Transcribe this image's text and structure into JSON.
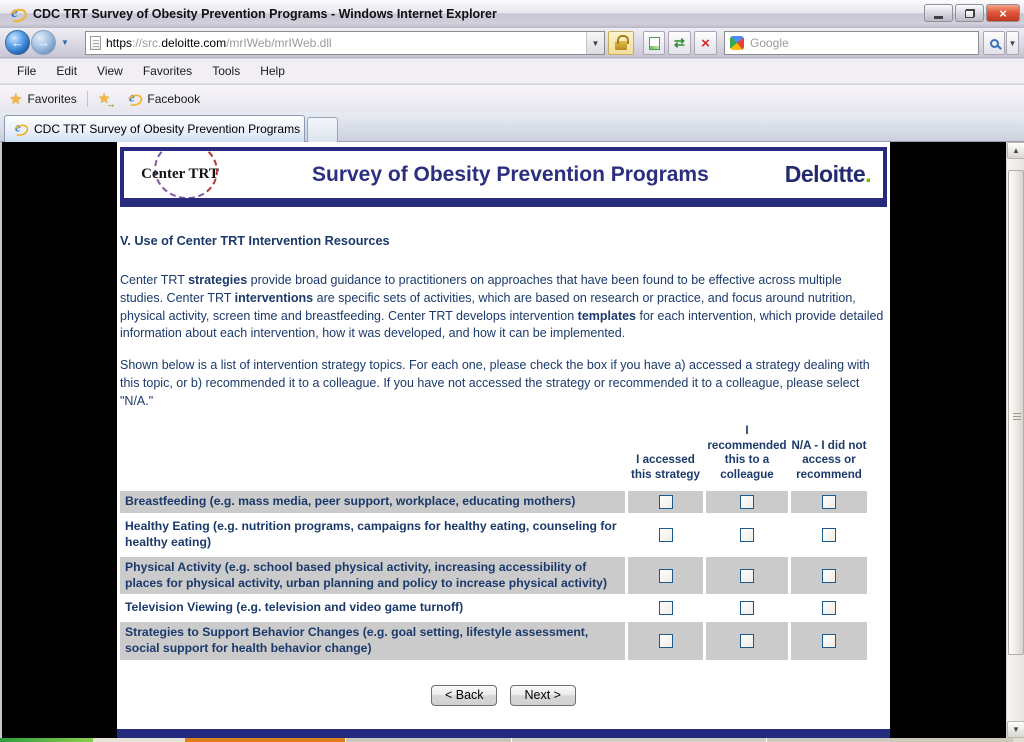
{
  "window": {
    "title": "CDC TRT Survey of Obesity Prevention Programs - Windows Internet Explorer"
  },
  "address": {
    "url_scheme": "https",
    "url_sep": "://",
    "url_subdomain": "src.",
    "url_domain": "deloitte.com",
    "url_path": "/mrIWeb/mrIWeb.dll"
  },
  "search": {
    "placeholder": "Google"
  },
  "menu": {
    "items": [
      "File",
      "Edit",
      "View",
      "Favorites",
      "Tools",
      "Help"
    ]
  },
  "favorites": {
    "label": "Favorites",
    "link": "Facebook"
  },
  "tab": {
    "label": "CDC TRT Survey of Obesity Prevention Programs"
  },
  "page": {
    "logo": "Center TRT",
    "banner_title": "Survey of Obesity Prevention Programs",
    "brand": "Deloitte",
    "brand_dot": ".",
    "heading": "V. Use of Center TRT Intervention Resources",
    "para1": [
      {
        "t": "Center TRT "
      },
      {
        "t": "strategies",
        "b": true
      },
      {
        "t": " provide broad guidance to practitioners on approaches that have been found to be effective across multiple studies. Center TRT "
      },
      {
        "t": "interventions",
        "b": true
      },
      {
        "t": " are specific sets of activities, which are based on research or practice, and focus around nutrition, physical activity, screen time and breastfeeding. Center TRT develops intervention "
      },
      {
        "t": "templates",
        "b": true
      },
      {
        "t": " for each intervention, which provide detailed information about each intervention, how it was developed, and how it can be implemented."
      }
    ],
    "para2": "Shown below is a list of intervention strategy topics. For each one, please check the box if you have a) accessed a strategy dealing with this topic, or b) recommended it to a colleague. If you have not accessed the strategy or recommended it to a colleague, please select \"N/A.\"",
    "table": {
      "columns": [
        "I accessed this strategy",
        "I recommended this to a colleague",
        "N/A - I did not access or recommend"
      ],
      "rows": [
        {
          "label": "Breastfeeding (e.g. mass media, peer support, workplace, educating mothers)",
          "checks": [
            false,
            false,
            false
          ]
        },
        {
          "label": "Healthy Eating (e.g. nutrition programs, campaigns for healthy eating, counseling for healthy eating)",
          "checks": [
            false,
            false,
            false
          ]
        },
        {
          "label": "Physical Activity (e.g. school based physical activity, increasing accessibility of places for physical activity, urban planning and policy to increase physical activity)",
          "checks": [
            false,
            false,
            false
          ]
        },
        {
          "label": "Television Viewing (e.g. television and video game turnoff)",
          "checks": [
            false,
            false,
            false
          ]
        },
        {
          "label": "Strategies to Support Behavior Changes (e.g. goal setting, lifestyle assessment, social support for health behavior change)",
          "checks": [
            false,
            false,
            false
          ]
        }
      ]
    },
    "buttons": {
      "back": "< Back",
      "next": "Next >"
    }
  },
  "colors": {
    "navy_text": "#1b3a6b",
    "banner_border": "#262b7d",
    "row_shade": "#cbcbcb",
    "deloitte_green": "#7ab800",
    "footer_bar": "#242a7e"
  }
}
